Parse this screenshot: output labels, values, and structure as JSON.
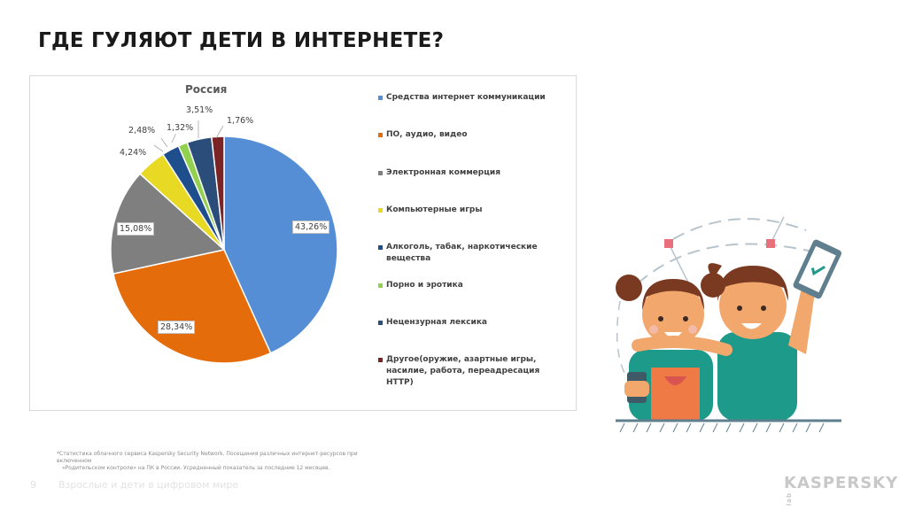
{
  "slide": {
    "title": "ГДЕ ГУЛЯЮТ ДЕТИ В ИНТЕРНЕТЕ?",
    "page_number": "9",
    "footer_text": "Взрослые и дети в цифровом мире",
    "footnote_line1": "*Статистика облачного сервиса Kaspersky Security Network. Посещения различных интернет-ресурсов при включенном",
    "footnote_line2": "«Родительском контроле» на ПК в России. Усредненный показатель за последние 12 месяцев.",
    "logo_main": "KASPERSKY",
    "logo_sub": "lab"
  },
  "chart_data": {
    "type": "pie",
    "title": "Россия",
    "legend_position": "right",
    "categories": [
      "Средства интернет коммуникации",
      "ПО, аудио, видео",
      "Электронная коммерция",
      "Компьютерные игры",
      "Алкоголь, табак, наркотические вещества",
      "Порно и эротика",
      "Нецензурная лексика",
      "Другое(оружие, азартные игры, насилие, работа, переадресация HTTP)"
    ],
    "values": [
      43.26,
      28.34,
      15.08,
      4.24,
      2.48,
      1.32,
      3.51,
      1.76
    ],
    "labels": [
      "43,26%",
      "28,34%",
      "15,08%",
      "4,24%",
      "2,48%",
      "1,32%",
      "3,51%",
      "1,76%"
    ],
    "colors": [
      "#558ed5",
      "#e46c0a",
      "#7f7f7f",
      "#e8d924",
      "#1f4e8c",
      "#92d050",
      "#2a4d7a",
      "#7b2426"
    ]
  },
  "legend": {
    "items": [
      {
        "label": "Средства интернет коммуникации",
        "color": "#558ed5"
      },
      {
        "label": "ПО, аудио, видео",
        "color": "#e46c0a"
      },
      {
        "label": "Электронная коммерция",
        "color": "#7f7f7f"
      },
      {
        "label": "Компьютерные игры",
        "color": "#e8d924"
      },
      {
        "label": "Алкоголь, табак, наркотические вещества",
        "color": "#1f4e8c"
      },
      {
        "label": "Порно и эротика",
        "color": "#92d050"
      },
      {
        "label": "Нецензурная лексика",
        "color": "#2a4d7a"
      },
      {
        "label": "Другое(оружие, азартные игры, насилие, работа, переадресация HTTP)",
        "color": "#7b2426"
      }
    ]
  }
}
